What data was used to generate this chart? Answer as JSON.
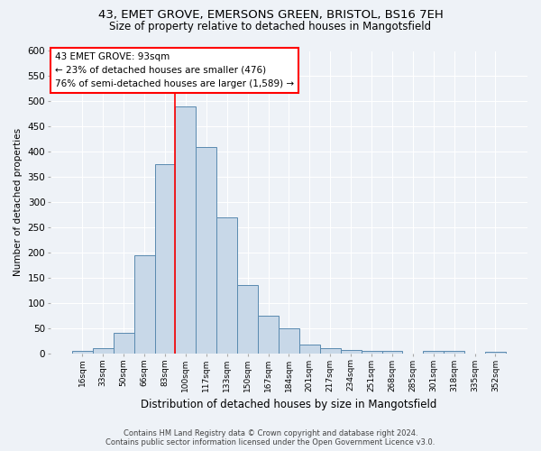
{
  "title_line1": "43, EMET GROVE, EMERSONS GREEN, BRISTOL, BS16 7EH",
  "title_line2": "Size of property relative to detached houses in Mangotsfield",
  "xlabel": "Distribution of detached houses by size in Mangotsfield",
  "ylabel": "Number of detached properties",
  "categories": [
    "16sqm",
    "33sqm",
    "50sqm",
    "66sqm",
    "83sqm",
    "100sqm",
    "117sqm",
    "133sqm",
    "150sqm",
    "167sqm",
    "184sqm",
    "201sqm",
    "217sqm",
    "234sqm",
    "251sqm",
    "268sqm",
    "285sqm",
    "301sqm",
    "318sqm",
    "335sqm",
    "352sqm"
  ],
  "values": [
    5,
    10,
    40,
    195,
    375,
    490,
    410,
    270,
    135,
    75,
    50,
    18,
    10,
    7,
    5,
    5,
    0,
    5,
    5,
    0,
    3
  ],
  "bar_color": "#c8d8e8",
  "bar_edge_color": "#5a8ab0",
  "annotation_text_line1": "43 EMET GROVE: 93sqm",
  "annotation_text_line2": "← 23% of detached houses are smaller (476)",
  "annotation_text_line3": "76% of semi-detached houses are larger (1,589) →",
  "annotation_box_color": "white",
  "annotation_box_edge_color": "red",
  "vline_color": "red",
  "ylim": [
    0,
    600
  ],
  "yticks": [
    0,
    50,
    100,
    150,
    200,
    250,
    300,
    350,
    400,
    450,
    500,
    550,
    600
  ],
  "footer_line1": "Contains HM Land Registry data © Crown copyright and database right 2024.",
  "footer_line2": "Contains public sector information licensed under the Open Government Licence v3.0.",
  "bg_color": "#eef2f7",
  "grid_color": "white",
  "title_fontsize": 9.5,
  "subtitle_fontsize": 8.5
}
